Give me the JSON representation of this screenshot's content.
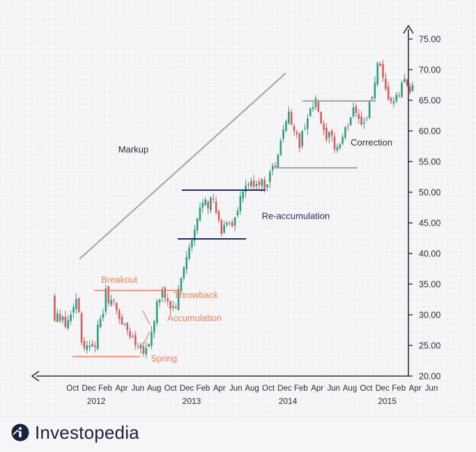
{
  "colors": {
    "background": "#f6f6f8",
    "grid": "#e4e4ea",
    "axis": "#2b2b33",
    "up": "#2f9c7e",
    "down": "#d65b5b",
    "accumulation": "#e8825a",
    "reaccumulation": "#1f2c5e",
    "trend": "#a3a3a8",
    "brand": "#1a2240"
  },
  "brand": {
    "name": "Investopedia",
    "icon": "investopedia-logo-icon"
  },
  "chart_data": {
    "type": "candlestick",
    "title": "",
    "xlabel": "",
    "ylabel": "",
    "ylim": [
      20,
      77
    ],
    "grid": true,
    "y_ticks": [
      "75.00",
      "70.00",
      "65.00",
      "60.00",
      "55.00",
      "50.00",
      "45.00",
      "40.00",
      "35.00",
      "30.00",
      "25.00",
      "20.00"
    ],
    "y_tick_values": [
      75,
      70,
      65,
      60,
      55,
      50,
      45,
      40,
      35,
      30,
      25,
      20
    ],
    "x_ticks": [
      "Oct",
      "Dec",
      "Feb",
      "Apr",
      "Jun",
      "Aug",
      "Oct",
      "Dec",
      "Feb",
      "Apr",
      "Jun",
      "Aug",
      "Oct",
      "Dec",
      "Feb",
      "Apr",
      "Jun",
      "Aug",
      "Oct",
      "Dec",
      "Feb",
      "Apr",
      "Jun"
    ],
    "x_tick_positions": [
      1,
      3,
      5,
      7,
      9,
      11,
      13,
      15,
      17,
      19,
      21,
      23,
      25,
      27,
      29,
      31,
      33,
      35,
      37,
      39,
      41,
      43,
      45
    ],
    "x_years": [
      {
        "label": "2012",
        "at": 3.9
      },
      {
        "label": "2013",
        "at": 15.6
      },
      {
        "label": "2014",
        "at": 27.4
      },
      {
        "label": "2015",
        "at": 39.6
      }
    ],
    "xlim": [
      -1.4,
      45
    ],
    "price_path": [
      [
        -1.2,
        33.5
      ],
      [
        -0.9,
        29
      ],
      [
        -0.6,
        31
      ],
      [
        -0.3,
        29.5
      ],
      [
        0,
        30.5
      ],
      [
        0.4,
        28
      ],
      [
        0.8,
        29.5
      ],
      [
        1.2,
        30
      ],
      [
        1.6,
        33
      ],
      [
        2,
        32
      ],
      [
        2.4,
        26
      ],
      [
        2.8,
        25
      ],
      [
        3.2,
        24.5
      ],
      [
        3.6,
        26
      ],
      [
        4,
        25
      ],
      [
        4.4,
        27.5
      ],
      [
        4.8,
        29
      ],
      [
        5.1,
        31
      ],
      [
        5.4,
        33.5
      ],
      [
        5.8,
        32.5
      ],
      [
        6.2,
        32
      ],
      [
        6.6,
        31
      ],
      [
        7,
        30
      ],
      [
        7.4,
        28.5
      ],
      [
        7.8,
        28
      ],
      [
        8.2,
        27
      ],
      [
        8.6,
        26.5
      ],
      [
        9,
        25.5
      ],
      [
        9.4,
        25.5
      ],
      [
        9.8,
        24.8
      ],
      [
        10.2,
        24.2
      ],
      [
        10.6,
        25
      ],
      [
        11,
        27
      ],
      [
        11.3,
        29
      ],
      [
        11.6,
        31.5
      ],
      [
        12,
        32.5
      ],
      [
        12.4,
        33.5
      ],
      [
        12.8,
        32.8
      ],
      [
        13.2,
        31.5
      ],
      [
        13.6,
        31
      ],
      [
        14,
        31.5
      ],
      [
        14.4,
        34
      ],
      [
        14.8,
        37
      ],
      [
        15.2,
        39
      ],
      [
        15.6,
        40.5
      ],
      [
        16,
        42
      ],
      [
        16.4,
        44
      ],
      [
        16.8,
        46.5
      ],
      [
        17.2,
        48.5
      ],
      [
        17.6,
        49.5
      ],
      [
        18,
        48
      ],
      [
        18.4,
        49
      ],
      [
        18.8,
        47.5
      ],
      [
        19.2,
        45
      ],
      [
        19.6,
        43.5
      ],
      [
        20,
        44.5
      ],
      [
        20.4,
        46
      ],
      [
        20.8,
        44.5
      ],
      [
        21.2,
        45.5
      ],
      [
        21.6,
        47
      ],
      [
        22,
        49
      ],
      [
        22.4,
        50.5
      ],
      [
        22.8,
        51.5
      ],
      [
        23.2,
        51
      ],
      [
        23.6,
        51.5
      ],
      [
        24,
        52
      ],
      [
        24.4,
        51.5
      ],
      [
        24.8,
        51
      ],
      [
        25.2,
        52
      ],
      [
        25.6,
        53.5
      ],
      [
        26,
        54
      ],
      [
        26.4,
        55
      ],
      [
        26.8,
        57.5
      ],
      [
        27.2,
        60.5
      ],
      [
        27.6,
        63
      ],
      [
        28,
        62
      ],
      [
        28.4,
        61
      ],
      [
        28.8,
        59
      ],
      [
        29.2,
        57.5
      ],
      [
        29.6,
        60
      ],
      [
        30,
        62
      ],
      [
        30.4,
        63
      ],
      [
        30.8,
        64
      ],
      [
        31.2,
        64.5
      ],
      [
        31.6,
        62.5
      ],
      [
        32,
        60
      ],
      [
        32.4,
        58
      ],
      [
        32.8,
        59
      ],
      [
        33.2,
        58.5
      ],
      [
        33.6,
        57
      ],
      [
        34,
        57.5
      ],
      [
        34.4,
        59
      ],
      [
        34.8,
        60
      ],
      [
        35.2,
        61.5
      ],
      [
        35.6,
        63.5
      ],
      [
        36,
        64
      ],
      [
        36.4,
        62.5
      ],
      [
        36.8,
        61
      ],
      [
        37.2,
        61.5
      ],
      [
        37.6,
        63.5
      ],
      [
        38,
        65.5
      ],
      [
        38.4,
        68
      ],
      [
        38.8,
        71
      ],
      [
        39.2,
        69
      ],
      [
        39.6,
        66.5
      ],
      [
        40,
        65.5
      ],
      [
        40.4,
        65
      ],
      [
        40.8,
        64.5
      ],
      [
        41.2,
        65.5
      ],
      [
        41.6,
        67
      ],
      [
        42,
        68.5
      ],
      [
        42.4,
        67.5
      ],
      [
        42.8,
        67
      ]
    ],
    "annotations": [
      {
        "text": "Markup",
        "x": 6.6,
        "y": 56.5
      },
      {
        "text": "Breakout",
        "x": 4.5,
        "y": 35.2
      },
      {
        "text": "Throwback",
        "x": 13.4,
        "y": 32.7
      },
      {
        "text": "Accumulation",
        "x": 12.6,
        "y": 29
      },
      {
        "text": "Spring",
        "x": 10.6,
        "y": 22.4
      },
      {
        "text": "Re-accumulation",
        "x": 24.2,
        "y": 45.6
      },
      {
        "text": "Correction",
        "x": 35.1,
        "y": 57.6
      }
    ]
  }
}
